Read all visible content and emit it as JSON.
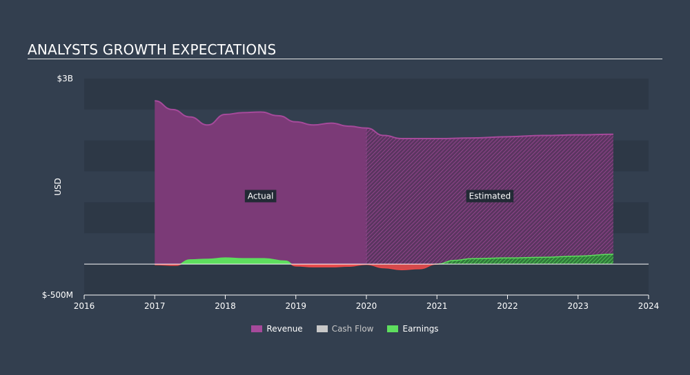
{
  "header": {
    "title": "ANALYSTS GROWTH EXPECTATIONS"
  },
  "colors": {
    "background": "#333f4f",
    "revenue": "#a64a9b",
    "cash_flow": "#c8c8c8",
    "earnings_positive": "#5ede5e",
    "earnings_negative": "#e84b4b",
    "band": "#2d3846"
  },
  "chart_data": {
    "type": "area",
    "title": "ANALYSTS GROWTH EXPECTATIONS",
    "ylabel": "USD",
    "xlim": [
      2016,
      2024
    ],
    "ylim": [
      -500000000,
      3000000000
    ],
    "y_tick_labels": [
      {
        "value": 3000000000,
        "label": "$3B"
      },
      {
        "value": -500000000,
        "label": "$-500M"
      }
    ],
    "x_ticks": [
      2016,
      2017,
      2018,
      2019,
      2020,
      2021,
      2022,
      2023,
      2024
    ],
    "split_year": 2020,
    "region_labels": [
      {
        "label": "Actual",
        "x": 2018.5,
        "y": 1100000000
      },
      {
        "label": "Estimated",
        "x": 2021.75,
        "y": 1100000000
      }
    ],
    "series": [
      {
        "name": "Revenue",
        "points": [
          [
            2017.0,
            2640000000
          ],
          [
            2017.25,
            2500000000
          ],
          [
            2017.5,
            2380000000
          ],
          [
            2017.75,
            2250000000
          ],
          [
            2018.0,
            2420000000
          ],
          [
            2018.25,
            2450000000
          ],
          [
            2018.5,
            2460000000
          ],
          [
            2018.75,
            2400000000
          ],
          [
            2019.0,
            2300000000
          ],
          [
            2019.25,
            2250000000
          ],
          [
            2019.5,
            2280000000
          ],
          [
            2019.75,
            2230000000
          ],
          [
            2020.0,
            2200000000
          ],
          [
            2020.25,
            2080000000
          ],
          [
            2020.5,
            2030000000
          ],
          [
            2021.0,
            2030000000
          ],
          [
            2021.5,
            2040000000
          ],
          [
            2022.0,
            2060000000
          ],
          [
            2022.5,
            2080000000
          ],
          [
            2023.0,
            2090000000
          ],
          [
            2023.5,
            2100000000
          ]
        ]
      },
      {
        "name": "Cash Flow",
        "points": []
      },
      {
        "name": "Earnings",
        "points": [
          [
            2017.0,
            -10000000
          ],
          [
            2017.3,
            -20000000
          ],
          [
            2017.5,
            70000000
          ],
          [
            2017.75,
            80000000
          ],
          [
            2018.0,
            100000000
          ],
          [
            2018.25,
            90000000
          ],
          [
            2018.55,
            90000000
          ],
          [
            2018.85,
            50000000
          ],
          [
            2019.0,
            -30000000
          ],
          [
            2019.25,
            -45000000
          ],
          [
            2019.5,
            -45000000
          ],
          [
            2019.75,
            -35000000
          ],
          [
            2020.0,
            -5000000
          ],
          [
            2020.25,
            -60000000
          ],
          [
            2020.5,
            -90000000
          ],
          [
            2020.75,
            -75000000
          ],
          [
            2021.0,
            0
          ],
          [
            2021.25,
            60000000
          ],
          [
            2021.5,
            90000000
          ],
          [
            2022.0,
            100000000
          ],
          [
            2022.5,
            110000000
          ],
          [
            2023.0,
            130000000
          ],
          [
            2023.5,
            160000000
          ]
        ]
      }
    ]
  },
  "legend": [
    {
      "label": "Revenue",
      "color": "#a64a9b"
    },
    {
      "label": "Cash Flow",
      "color": "#c8c8c8"
    },
    {
      "label": "Earnings",
      "color": "#5ede5e"
    }
  ]
}
